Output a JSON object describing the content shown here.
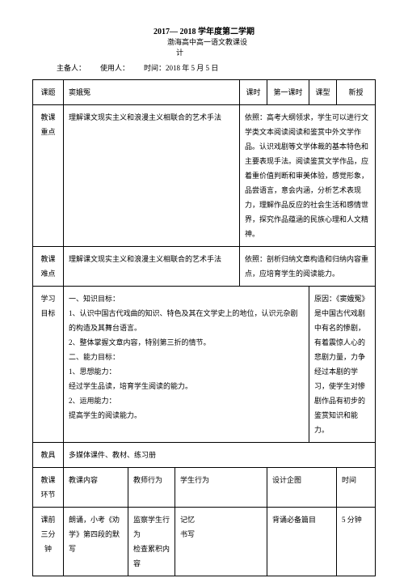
{
  "header": {
    "semester": "2017— 2018 学年度第二学期",
    "school": "渤海高中高一语文教课设",
    "school2": "计",
    "prepared_label": "主备人：",
    "use_label": "使用人：",
    "time_label": "时间：",
    "time_value": "2018 年 5 月 5 日"
  },
  "row1": {
    "c1": "课题",
    "c2": "窦娥冤",
    "c3": "课时",
    "c4": "第一课时",
    "c5": "课型",
    "c6": "新授"
  },
  "row2": {
    "left_label": "教课\n重点",
    "left_text": "理解课文现实主义和浪漫主义相联合的艺术手法",
    "right_text": "依照：高考大纲领求，学生可以进行文学类文本阅读阅读和鉴赏中外文学作品。认识戏剧等文学体裁的基本特色和主要表现手法。阅读鉴赏文学作品，应着重价值判断和审美体验，感觉形象，品尝语言，意会内涵，分析艺术表现力，理解作品反应的社会生活和感情世界，探究作品蕴涵的民族心理和人文精神。"
  },
  "row3": {
    "left_label": "教课\n难点",
    "left_text": "理解课文现实主义和浪漫主义相联合的艺术手法",
    "right_text": "依照：剖析归纳文章构造和归纳内容重点，应培育学生的阅读能力。"
  },
  "row4": {
    "left_label": "学习\n目标",
    "body": "一、知识目标：\n1、认识中国古代戏曲的知识、特色及其在文学史上的地位，认识元杂剧的构造及其舞台语言。\n2、整体掌握文章内容，特别第三折的情节。\n二、能力目标：\n1、思想能力：\n经过学生品读，培育学生阅读的能力。\n2、运用能力：\n提高学生的阅读能力。",
    "right": "原因：《窦娥冤》是中国古代戏剧中有名的惨剧，      有着震惊人心的悲剧力量，力争经过本剧的学习，使学生对惨剧作品有初步的鉴赏知识和能力。"
  },
  "row5": {
    "c1": "教具",
    "c2": "多媒体课件、教材、练习册"
  },
  "row6": {
    "c1": "教课\n环节",
    "c2": "教课内容",
    "c3": "教师行为",
    "c4": "学生行为",
    "c5": "设计企图",
    "c6": "时间"
  },
  "row7": {
    "c1": "课前\n三分钟",
    "c2": "朗诵，小考《劝学》第四段的默写",
    "c3": "监察学生行为\n检查累积内容",
    "c4": "记忆\n书写",
    "c5": "背诵必备篇目",
    "c6": "5 分钟"
  }
}
